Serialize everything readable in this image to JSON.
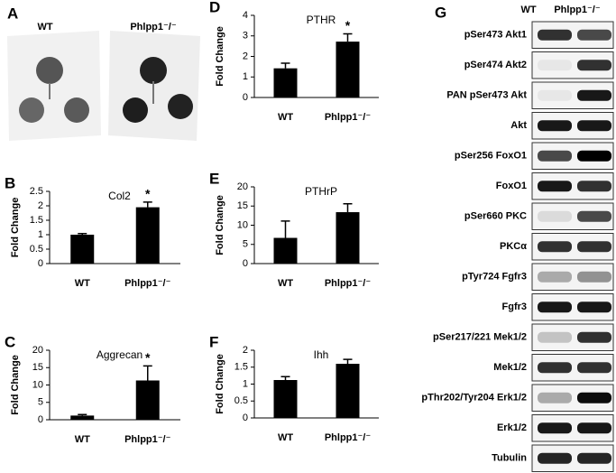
{
  "panel_a": {
    "label": "A",
    "columns": [
      "WT",
      "Phlpp1⁻/⁻"
    ]
  },
  "chart_data": [
    {
      "type": "bar",
      "panel": "B",
      "title": "Col2",
      "ylabel": "Fold Change",
      "categories": [
        "WT",
        "Phlpp1⁻/⁻"
      ],
      "values": [
        1.0,
        1.95
      ],
      "errors": [
        0.04,
        0.18
      ],
      "annotation": "*",
      "color": "#000000",
      "ylim": [
        0,
        2.5
      ],
      "yticks": [
        0,
        0.5,
        1,
        1.5,
        2,
        2.5
      ]
    },
    {
      "type": "bar",
      "panel": "C",
      "title": "Aggrecan",
      "ylabel": "Fold Change",
      "categories": [
        "WT",
        "Phlpp1⁻/⁻"
      ],
      "values": [
        1.2,
        11.3
      ],
      "errors": [
        0.3,
        4.2
      ],
      "annotation": "*",
      "color": "#000000",
      "ylim": [
        0,
        20
      ],
      "yticks": [
        0,
        5,
        10,
        15,
        20
      ]
    },
    {
      "type": "bar",
      "panel": "D",
      "title": "PTHR",
      "ylabel": "Fold Change",
      "categories": [
        "WT",
        "Phlpp1⁻/⁻"
      ],
      "values": [
        1.42,
        2.72
      ],
      "errors": [
        0.25,
        0.38
      ],
      "annotation": "*",
      "color": "#000000",
      "ylim": [
        0,
        4
      ],
      "yticks": [
        0,
        1,
        2,
        3,
        4
      ]
    },
    {
      "type": "bar",
      "panel": "E",
      "title": "PTHrP",
      "ylabel": "Fold Change",
      "categories": [
        "WT",
        "Phlpp1⁻/⁻"
      ],
      "values": [
        6.7,
        13.4
      ],
      "errors": [
        4.4,
        2.2
      ],
      "color": "#000000",
      "ylim": [
        0,
        20
      ],
      "yticks": [
        0,
        5,
        10,
        15,
        20
      ]
    },
    {
      "type": "bar",
      "panel": "F",
      "title": "Ihh",
      "ylabel": "Fold Change",
      "categories": [
        "WT",
        "Phlpp1⁻/⁻"
      ],
      "values": [
        1.12,
        1.6
      ],
      "errors": [
        0.1,
        0.13
      ],
      "color": "#000000",
      "ylim": [
        0,
        2
      ],
      "yticks": [
        0,
        0.5,
        1,
        1.5,
        2
      ]
    }
  ],
  "panel_g": {
    "label": "G",
    "columns": [
      "WT",
      "Phlpp1⁻/⁻"
    ],
    "rows": [
      "pSer473 Akt1",
      "pSer474 Akt2",
      "PAN pSer473 Akt",
      "Akt",
      "pSer256 FoxO1",
      "FoxO1",
      "pSer660 PKC",
      "PKCα",
      "pTyr724 Fgfr3",
      "Fgfr3",
      "pSer217/221 Mek1/2",
      "Mek1/2",
      "pThr202/Tyr204 Erk1/2",
      "Erk1/2",
      "Tubulin"
    ]
  }
}
